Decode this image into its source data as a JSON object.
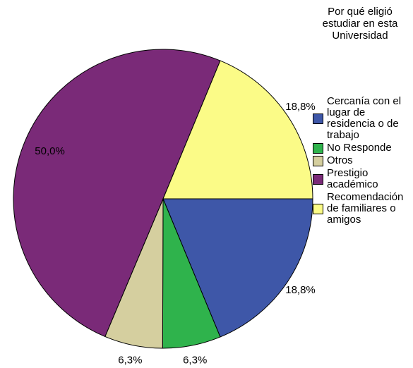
{
  "chart_data": {
    "type": "pie",
    "legend_title": "Por qué eligió estudiar en esta Universidad",
    "categories": [
      "Cercanía con el lugar de residencia o de trabajo",
      "No Responde",
      "Otros",
      "Prestigio académico",
      "Recomendación de familiares o amigos"
    ],
    "values": [
      18.8,
      6.3,
      6.3,
      50.0,
      18.8
    ],
    "value_labels": [
      "18,8%",
      "6,3%",
      "6,3%",
      "50,0%",
      "18,8%"
    ],
    "colors": [
      "#3e57a8",
      "#2fb34c",
      "#d5cf9f",
      "#7a2a78",
      "#fbfb87"
    ],
    "legend": "right"
  }
}
